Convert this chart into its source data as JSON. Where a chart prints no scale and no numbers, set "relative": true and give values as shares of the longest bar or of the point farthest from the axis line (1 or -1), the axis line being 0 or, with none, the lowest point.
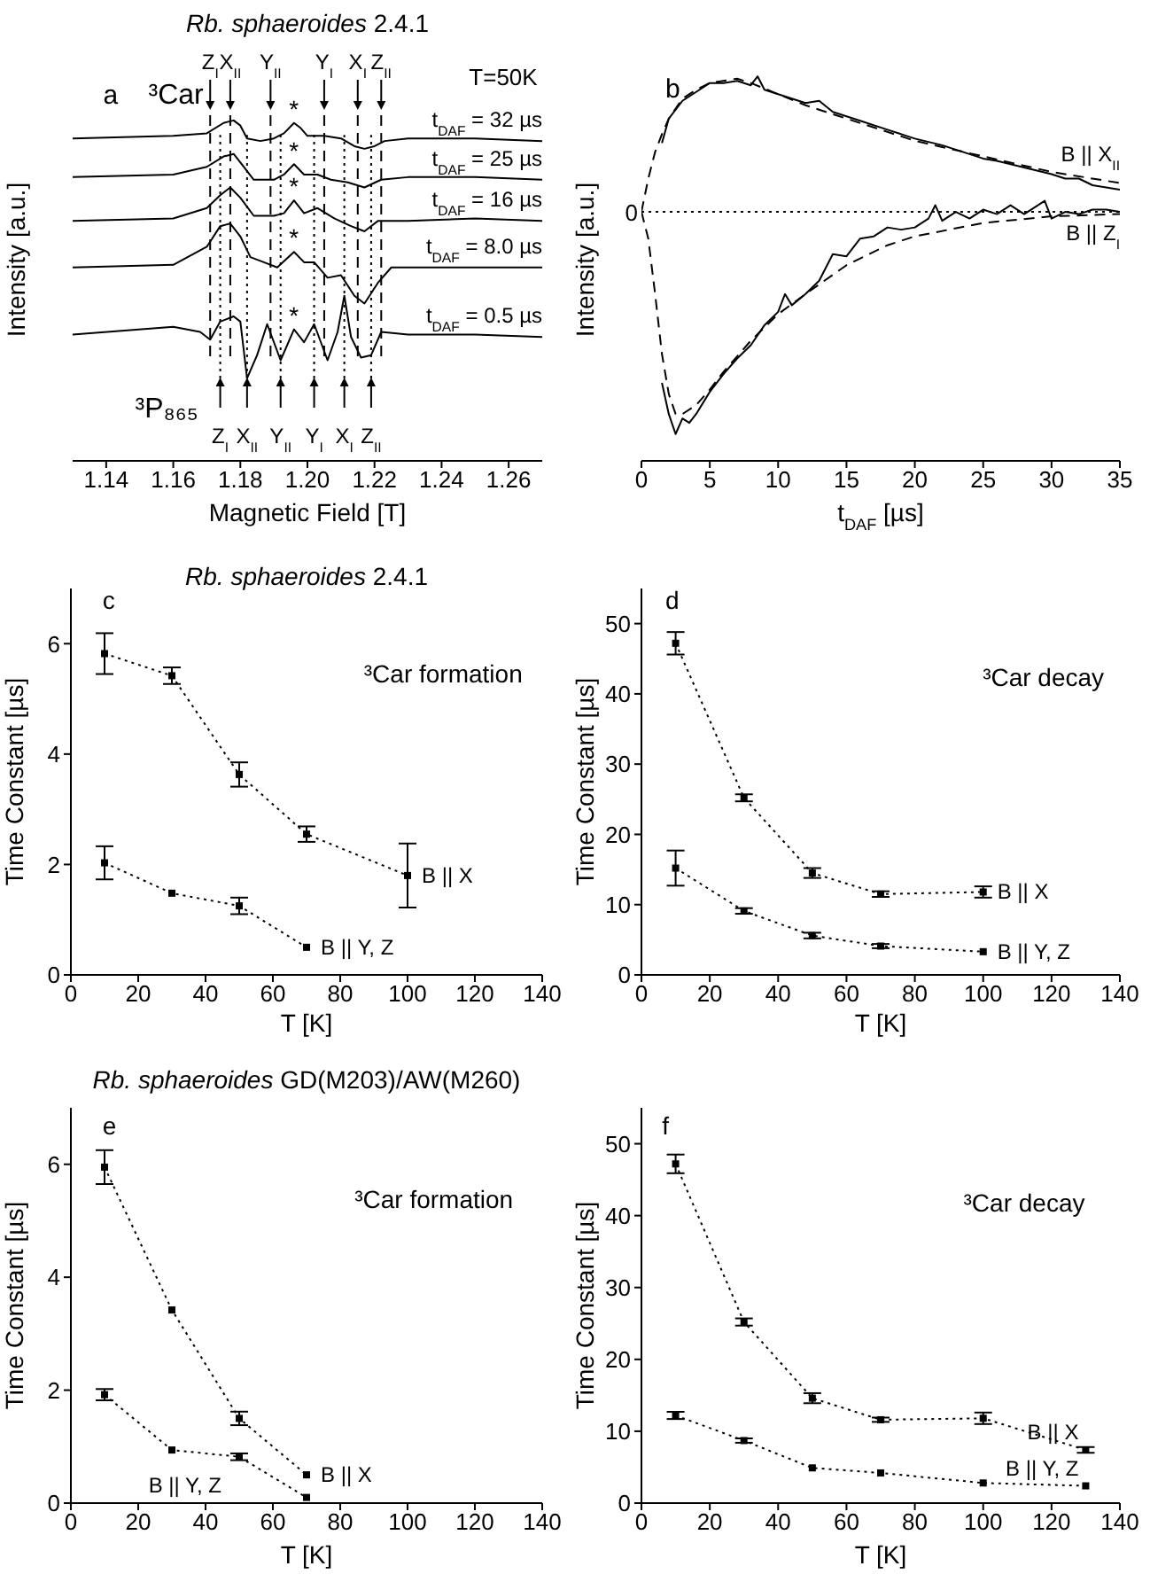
{
  "chart_data": [
    {
      "type": "line",
      "title": "Rb. sphaeroides 2.4.1",
      "xlabel": "Magnetic Field [T]",
      "ylabel": "Intensity [a.u.]",
      "relative": true,
      "xlim": [
        1.13,
        1.27
      ],
      "xticks": [
        1.14,
        1.16,
        1.18,
        {
          "value": 1.2,
          "label": "1.20"
        },
        1.22,
        1.24,
        1.26
      ],
      "line_style": "solid",
      "annotations": [
        "a",
        "³Car",
        "³P₈₆₅",
        "T=50K",
        "*",
        "*",
        "*",
        "*",
        "*"
      ],
      "ref_lines": [
        {
          "axis": "x",
          "value": 1.171,
          "label": "Z$_{I}$",
          "line_style": "dashed"
        },
        {
          "axis": "x",
          "value": 1.177,
          "label": "X$_{II}$",
          "line_style": "dashed"
        },
        {
          "axis": "x",
          "value": 1.189,
          "label": "Y$_{II}$",
          "line_style": "dashed"
        },
        {
          "axis": "x",
          "value": 1.205,
          "label": "Y$_{I}$",
          "line_style": "dashed"
        },
        {
          "axis": "x",
          "value": 1.215,
          "label": "X$_{I}$",
          "line_style": "dashed"
        },
        {
          "axis": "x",
          "value": 1.222,
          "label": "Z$_{II}$",
          "line_style": "dashed"
        },
        {
          "axis": "x",
          "value": 1.174,
          "label": "Z$_{I}$",
          "line_style": "dotted"
        },
        {
          "axis": "x",
          "value": 1.182,
          "label": "X$_{II}$",
          "line_style": "dotted"
        },
        {
          "axis": "x",
          "value": 1.192,
          "label": "Y$_{II}$",
          "line_style": "dotted"
        },
        {
          "axis": "x",
          "value": 1.202,
          "label": "Y$_{I}$",
          "line_style": "dotted"
        },
        {
          "axis": "x",
          "value": 1.211,
          "label": "X$_{I}$",
          "line_style": "dotted"
        },
        {
          "axis": "x",
          "value": 1.219,
          "label": "Z$_{II}$",
          "line_style": "dotted"
        }
      ],
      "series": [
        {
          "name": "t$_{DAF}$ = 32 µs",
          "color": "#000000",
          "x": [
            1.13,
            1.16,
            1.17,
            1.175,
            1.178,
            1.18,
            1.182,
            1.186,
            1.19,
            1.193,
            1.196,
            1.198,
            1.2,
            1.205,
            1.21,
            1.214,
            1.217,
            1.22,
            1.223,
            1.23,
            1.25,
            1.27
          ],
          "values": [
            0.93,
            0.94,
            0.95,
            0.99,
            1.0,
            0.98,
            0.93,
            0.92,
            0.93,
            0.95,
            0.99,
            0.97,
            0.94,
            0.94,
            0.93,
            0.9,
            0.89,
            0.9,
            0.92,
            0.93,
            0.93,
            0.92
          ]
        },
        {
          "name": "t$_{DAF}$ = 25 µs",
          "color": "#000000",
          "x": [
            1.13,
            1.16,
            1.17,
            1.175,
            1.178,
            1.181,
            1.184,
            1.19,
            1.193,
            1.196,
            1.199,
            1.203,
            1.207,
            1.212,
            1.217,
            1.222,
            1.23,
            1.25,
            1.27
          ],
          "values": [
            0.78,
            0.79,
            0.82,
            0.86,
            0.87,
            0.82,
            0.77,
            0.77,
            0.79,
            0.83,
            0.79,
            0.79,
            0.77,
            0.76,
            0.74,
            0.77,
            0.78,
            0.78,
            0.77
          ]
        },
        {
          "name": "t$_{DAF}$ = 16 µs",
          "color": "#000000",
          "x": [
            1.13,
            1.16,
            1.17,
            1.174,
            1.177,
            1.18,
            1.184,
            1.19,
            1.193,
            1.196,
            1.199,
            1.203,
            1.208,
            1.213,
            1.217,
            1.221,
            1.23,
            1.25,
            1.27
          ],
          "values": [
            0.61,
            0.62,
            0.66,
            0.71,
            0.74,
            0.7,
            0.63,
            0.63,
            0.64,
            0.69,
            0.64,
            0.66,
            0.62,
            0.59,
            0.57,
            0.61,
            0.61,
            0.62,
            0.61
          ]
        },
        {
          "name": "t$_{DAF}$ = 8.0 µs",
          "color": "#000000",
          "x": [
            1.13,
            1.16,
            1.17,
            1.174,
            1.177,
            1.18,
            1.183,
            1.187,
            1.191,
            1.196,
            1.199,
            1.202,
            1.206,
            1.21,
            1.214,
            1.217,
            1.221,
            1.225,
            1.24,
            1.27
          ],
          "values": [
            0.43,
            0.44,
            0.51,
            0.59,
            0.6,
            0.55,
            0.47,
            0.45,
            0.43,
            0.49,
            0.45,
            0.45,
            0.39,
            0.4,
            0.32,
            0.29,
            0.37,
            0.43,
            0.43,
            0.43
          ]
        },
        {
          "name": "t$_{DAF}$ = 0.5 µs",
          "color": "#000000",
          "x": [
            1.13,
            1.16,
            1.168,
            1.171,
            1.174,
            1.178,
            1.18,
            1.182,
            1.185,
            1.188,
            1.192,
            1.195,
            1.196,
            1.199,
            1.202,
            1.206,
            1.209,
            1.211,
            1.213,
            1.216,
            1.219,
            1.222,
            1.23,
            1.25,
            1.27
          ],
          "values": [
            0.17,
            0.2,
            0.18,
            0.15,
            0.22,
            0.24,
            0.22,
            0.0,
            0.09,
            0.21,
            0.07,
            0.16,
            0.19,
            0.14,
            0.21,
            0.07,
            0.18,
            0.32,
            0.16,
            0.08,
            0.09,
            0.18,
            0.17,
            0.17,
            0.16
          ]
        }
      ]
    },
    {
      "type": "line",
      "xlabel": "t$_{DAF}$ [µs]",
      "ylabel": "Intensity [a.u.]",
      "relative": true,
      "xlim": [
        0,
        35
      ],
      "xticks": [
        0,
        5,
        10,
        15,
        20,
        25,
        30,
        35
      ],
      "annotations": [
        "b"
      ],
      "ref_lines": [
        {
          "axis": "y",
          "value": 0,
          "label": "0",
          "line_style": "dotted"
        }
      ],
      "series": [
        {
          "name": "B || X$_{II}$",
          "color": "#000000",
          "line_style": "solid",
          "x": [
            1.5,
            2,
            3,
            4,
            5,
            6,
            7,
            8,
            8.5,
            9,
            10,
            12,
            13,
            14,
            16,
            18,
            20,
            22,
            24,
            25,
            26,
            28,
            30,
            31,
            32,
            33,
            34,
            35
          ],
          "values": [
            0.31,
            0.42,
            0.5,
            0.54,
            0.58,
            0.58,
            0.59,
            0.57,
            0.61,
            0.55,
            0.53,
            0.49,
            0.5,
            0.45,
            0.41,
            0.37,
            0.33,
            0.3,
            0.26,
            0.24,
            0.23,
            0.2,
            0.17,
            0.15,
            0.15,
            0.12,
            0.11,
            0.1
          ]
        },
        {
          "color": "#000000",
          "line_style": "dashed",
          "x": [
            0,
            0.5,
            1,
            1.5,
            2,
            3,
            4,
            5,
            6,
            7,
            8,
            10,
            12,
            15,
            18,
            20,
            25,
            30,
            35
          ],
          "values": [
            0,
            0.15,
            0.27,
            0.35,
            0.42,
            0.51,
            0.55,
            0.58,
            0.59,
            0.6,
            0.58,
            0.53,
            0.48,
            0.42,
            0.36,
            0.32,
            0.25,
            0.18,
            0.13
          ]
        },
        {
          "name": "B || Z$_{I}$",
          "color": "#000000",
          "line_style": "solid",
          "x": [
            1.5,
            2,
            2.5,
            3,
            3.5,
            4,
            5,
            6,
            7,
            8,
            9,
            10,
            10.5,
            11,
            12,
            13,
            14,
            15,
            16,
            17,
            18,
            19,
            20,
            21,
            21.5,
            22,
            23,
            24,
            25,
            26,
            27,
            28,
            29,
            29.5,
            30,
            31,
            32,
            33,
            34,
            35
          ],
          "values": [
            -0.77,
            -0.91,
            -1,
            -0.93,
            -0.95,
            -0.91,
            -0.81,
            -0.73,
            -0.66,
            -0.6,
            -0.51,
            -0.45,
            -0.37,
            -0.42,
            -0.37,
            -0.31,
            -0.19,
            -0.2,
            -0.12,
            -0.11,
            -0.07,
            -0.08,
            -0.07,
            -0.03,
            0.03,
            -0.04,
            0,
            -0.03,
            0.01,
            -0.01,
            0.03,
            -0.01,
            0.03,
            0.05,
            -0.03,
            0,
            -0.01,
            0.01,
            0.01,
            0
          ]
        },
        {
          "color": "#000000",
          "line_style": "dashed",
          "x": [
            0,
            0.5,
            1,
            1.5,
            2,
            2.5,
            3,
            4,
            5,
            6,
            8,
            10,
            12,
            15,
            18,
            20,
            25,
            30,
            35
          ],
          "values": [
            0,
            -0.12,
            -0.37,
            -0.64,
            -0.82,
            -0.91,
            -0.91,
            -0.87,
            -0.8,
            -0.72,
            -0.58,
            -0.46,
            -0.37,
            -0.24,
            -0.15,
            -0.11,
            -0.05,
            -0.02,
            -0.01
          ]
        }
      ]
    },
    {
      "type": "line",
      "title": "Rb. sphaeroides 2.4.1",
      "xlabel": "T [K]",
      "ylabel": "Time Constant [µs]",
      "xlim": [
        0,
        140
      ],
      "xticks": [
        0,
        20,
        40,
        60,
        80,
        100,
        120,
        140
      ],
      "ylim": [
        0,
        7
      ],
      "yticks": [
        0,
        2,
        4,
        6
      ],
      "line_style": "dotted",
      "marker": "square",
      "annotations": [
        "c",
        "³Car formation"
      ],
      "series": [
        {
          "name": "B || X",
          "color": "#000000",
          "x": [
            10,
            30,
            50,
            70,
            100
          ],
          "values": [
            5.82,
            5.42,
            3.63,
            2.55,
            1.8
          ],
          "errors": [
            0.37,
            0.15,
            0.22,
            0.14,
            0.58
          ]
        },
        {
          "name": "B || Y, Z",
          "color": "#000000",
          "x": [
            10,
            30,
            50,
            70
          ],
          "values": [
            2.03,
            1.48,
            1.25,
            0.5
          ],
          "errors": [
            0.3,
            null,
            0.15,
            null
          ]
        }
      ]
    },
    {
      "type": "line",
      "xlabel": "T [K]",
      "ylabel": "Time Constant [µs]",
      "xlim": [
        0,
        140
      ],
      "xticks": [
        0,
        20,
        40,
        60,
        80,
        100,
        120,
        140
      ],
      "ylim": [
        0,
        55
      ],
      "yticks": [
        0,
        10,
        20,
        30,
        40,
        50
      ],
      "line_style": "dotted",
      "marker": "square",
      "annotations": [
        "d",
        "³Car decay"
      ],
      "series": [
        {
          "name": "B || X",
          "color": "#000000",
          "x": [
            10,
            30,
            50,
            70,
            100
          ],
          "values": [
            47.2,
            25.2,
            14.5,
            11.5,
            11.8
          ],
          "errors": [
            1.6,
            0.5,
            0.7,
            0.4,
            0.8
          ]
        },
        {
          "name": "B || Y, Z",
          "color": "#000000",
          "x": [
            10,
            30,
            50,
            70,
            100
          ],
          "values": [
            15.2,
            9.1,
            5.6,
            4.1,
            3.3
          ],
          "errors": [
            2.5,
            0.4,
            0.4,
            0.3,
            null
          ]
        }
      ]
    },
    {
      "type": "line",
      "title": "Rb. sphaeroides GD(M203)/AW(M260)",
      "xlabel": "T [K]",
      "ylabel": "Time Constant [µs]",
      "xlim": [
        0,
        140
      ],
      "xticks": [
        0,
        20,
        40,
        60,
        80,
        100,
        120,
        140
      ],
      "ylim": [
        0,
        7
      ],
      "yticks": [
        0,
        2,
        4,
        6
      ],
      "line_style": "dotted",
      "marker": "square",
      "annotations": [
        "e",
        "³Car formation"
      ],
      "series": [
        {
          "name": "B || X",
          "color": "#000000",
          "x": [
            10,
            30,
            50,
            70
          ],
          "values": [
            5.95,
            3.42,
            1.5,
            0.5
          ],
          "errors": [
            0.3,
            null,
            0.12,
            null
          ]
        },
        {
          "name": "B || Y, Z",
          "color": "#000000",
          "x": [
            10,
            30,
            50,
            70
          ],
          "values": [
            1.92,
            0.94,
            0.82,
            0.1
          ],
          "errors": [
            0.1,
            null,
            0.06,
            null
          ]
        }
      ]
    },
    {
      "type": "line",
      "xlabel": "T [K]",
      "ylabel": "Time Constant [µs]",
      "xlim": [
        0,
        140
      ],
      "xticks": [
        0,
        20,
        40,
        60,
        80,
        100,
        120,
        140
      ],
      "ylim": [
        0,
        55
      ],
      "yticks": [
        0,
        10,
        20,
        30,
        40,
        50
      ],
      "line_style": "dotted",
      "marker": "square",
      "annotations": [
        "f",
        "³Car decay"
      ],
      "series": [
        {
          "name": "B || X",
          "color": "#000000",
          "x": [
            10,
            30,
            50,
            70,
            100,
            130
          ],
          "values": [
            47.2,
            25.2,
            14.6,
            11.6,
            11.8,
            7.4
          ],
          "errors": [
            1.3,
            0.5,
            0.7,
            0.3,
            0.8,
            0.4
          ]
        },
        {
          "name": "B || Y, Z",
          "color": "#000000",
          "x": [
            10,
            30,
            50,
            70,
            100,
            130
          ],
          "values": [
            12.2,
            8.7,
            4.9,
            4.2,
            2.8,
            2.4
          ],
          "errors": [
            0.5,
            0.3,
            null,
            null,
            null,
            null
          ]
        }
      ]
    }
  ]
}
